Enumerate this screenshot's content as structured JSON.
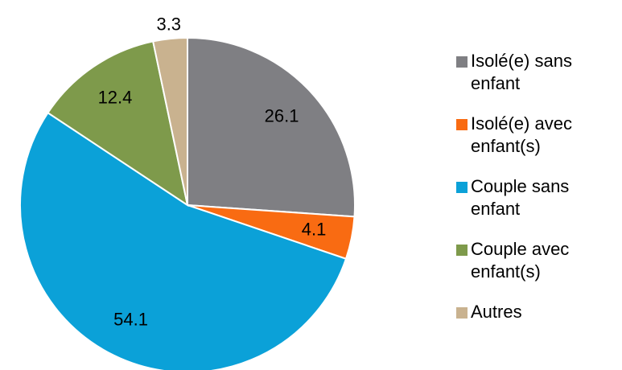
{
  "chart_data": {
    "type": "pie",
    "categories": [
      "Isolé(e) sans enfant",
      "Isolé(e) avec enfant(s)",
      "Couple sans enfant",
      "Couple avec enfant(s)",
      "Autres"
    ],
    "values": [
      26.1,
      4.1,
      54.1,
      12.4,
      3.3
    ],
    "colors": [
      "#7f7f83",
      "#f96b12",
      "#0ba1d8",
      "#7e9a4b",
      "#c9b28f"
    ],
    "legend": "right"
  }
}
